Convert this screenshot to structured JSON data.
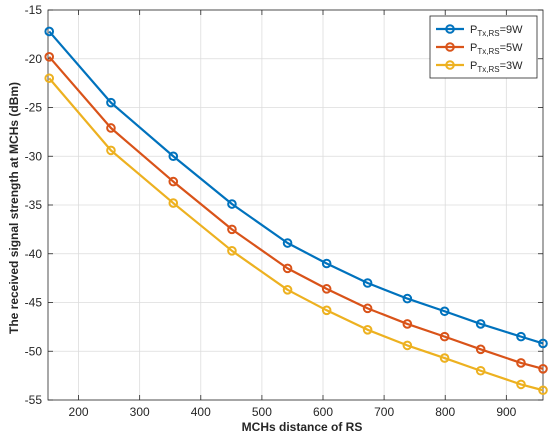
{
  "chart_data": {
    "type": "line",
    "title": "",
    "xlabel": "MCHs distance of RS",
    "ylabel": "The received signal strength at MCHs (dBm)",
    "xlim": [
      150,
      960
    ],
    "ylim": [
      -55,
      -15
    ],
    "xticks": [
      200,
      300,
      400,
      500,
      600,
      700,
      800,
      900
    ],
    "yticks": [
      -15,
      -20,
      -25,
      -30,
      -35,
      -40,
      -45,
      -50,
      -55
    ],
    "grid": true,
    "legend_position": "top-right",
    "x": [
      152,
      253,
      355,
      451,
      542,
      606,
      673,
      738,
      799,
      858,
      924,
      960
    ],
    "series": [
      {
        "name": "P_Tx,RS=9W",
        "legend_main": "P",
        "legend_sub": "Tx,RS",
        "legend_tail": "=9W",
        "color": "#0072BD",
        "marker": "circle",
        "values": [
          -17.2,
          -24.5,
          -30.0,
          -34.9,
          -38.9,
          -41.0,
          -43.0,
          -44.6,
          -45.9,
          -47.2,
          -48.5,
          -49.2
        ]
      },
      {
        "name": "P_Tx,RS=5W",
        "legend_main": "P",
        "legend_sub": "Tx,RS",
        "legend_tail": "=5W",
        "color": "#D95319",
        "marker": "circle",
        "values": [
          -19.8,
          -27.1,
          -32.6,
          -37.5,
          -41.5,
          -43.6,
          -45.6,
          -47.2,
          -48.5,
          -49.8,
          -51.2,
          -51.8
        ]
      },
      {
        "name": "P_Tx,RS=3W",
        "legend_main": "P",
        "legend_sub": "Tx,RS",
        "legend_tail": "=3W",
        "color": "#EDB120",
        "marker": "circle",
        "values": [
          -22.0,
          -29.4,
          -34.8,
          -39.7,
          -43.7,
          -45.8,
          -47.8,
          -49.4,
          -50.7,
          -52.0,
          -53.4,
          -54.0
        ]
      }
    ]
  }
}
